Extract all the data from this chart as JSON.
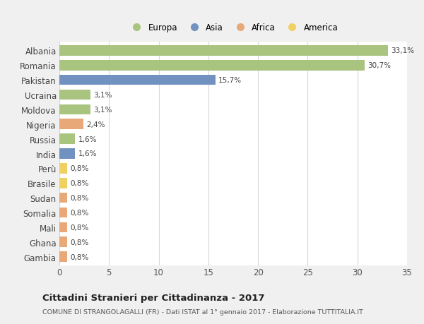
{
  "countries": [
    "Albania",
    "Romania",
    "Pakistan",
    "Ucraina",
    "Moldova",
    "Nigeria",
    "Russia",
    "India",
    "Perù",
    "Brasile",
    "Sudan",
    "Somalia",
    "Mali",
    "Ghana",
    "Gambia"
  ],
  "values": [
    33.1,
    30.7,
    15.7,
    3.1,
    3.1,
    2.4,
    1.6,
    1.6,
    0.8,
    0.8,
    0.8,
    0.8,
    0.8,
    0.8,
    0.8
  ],
  "labels": [
    "33,1%",
    "30,7%",
    "15,7%",
    "3,1%",
    "3,1%",
    "2,4%",
    "1,6%",
    "1,6%",
    "0,8%",
    "0,8%",
    "0,8%",
    "0,8%",
    "0,8%",
    "0,8%",
    "0,8%"
  ],
  "continents": [
    "Europa",
    "Europa",
    "Asia",
    "Europa",
    "Europa",
    "Africa",
    "Europa",
    "Asia",
    "America",
    "America",
    "Africa",
    "Africa",
    "Africa",
    "Africa",
    "Africa"
  ],
  "colors": {
    "Europa": "#a8c47e",
    "Asia": "#7191c0",
    "Africa": "#e8a878",
    "America": "#f0d060"
  },
  "title": "Cittadini Stranieri per Cittadinanza - 2017",
  "subtitle": "COMUNE DI STRANGOLAGALLI (FR) - Dati ISTAT al 1° gennaio 2017 - Elaborazione TUTTITALIA.IT",
  "xlim": [
    0,
    35
  ],
  "xticks": [
    0,
    5,
    10,
    15,
    20,
    25,
    30,
    35
  ],
  "background_color": "#f0f0f0",
  "plot_background_color": "#ffffff",
  "grid_color": "#d8d8d8",
  "bar_height": 0.7
}
